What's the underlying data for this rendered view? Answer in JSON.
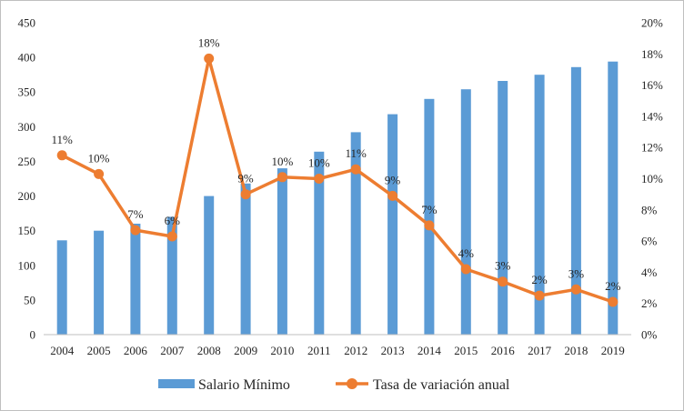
{
  "chart_data": {
    "type": "bar",
    "categories": [
      "2004",
      "2005",
      "2006",
      "2007",
      "2008",
      "2009",
      "2010",
      "2011",
      "2012",
      "2013",
      "2014",
      "2015",
      "2016",
      "2017",
      "2018",
      "2019"
    ],
    "series": [
      {
        "name": "Salario Mínimo",
        "type": "bar",
        "axis": "left",
        "color": "#5B9BD5",
        "values": [
          136,
          150,
          160,
          170,
          200,
          218,
          240,
          264,
          292,
          318,
          340,
          354,
          366,
          375,
          386,
          394
        ]
      },
      {
        "name": "Tasa de variación anual",
        "type": "line",
        "axis": "right",
        "color": "#ED7D31",
        "values": [
          11.5,
          10.3,
          6.7,
          6.3,
          17.7,
          9.0,
          10.1,
          10.0,
          10.6,
          8.9,
          7.0,
          4.2,
          3.4,
          2.5,
          2.9,
          2.1
        ],
        "data_labels": [
          "11%",
          "10%",
          "7%",
          "6%",
          "18%",
          "9%",
          "10%",
          "10%",
          "11%",
          "9%",
          "7%",
          "4%",
          "3%",
          "2%",
          "3%",
          "2%"
        ]
      }
    ],
    "y_left": {
      "ylim": [
        0,
        450
      ],
      "ticks": [
        0,
        50,
        100,
        150,
        200,
        250,
        300,
        350,
        400,
        450
      ],
      "tick_labels": [
        "0",
        "50",
        "100",
        "150",
        "200",
        "250",
        "300",
        "350",
        "400",
        "450"
      ]
    },
    "y_right": {
      "ylim": [
        0,
        20
      ],
      "ticks": [
        0,
        2,
        4,
        6,
        8,
        10,
        12,
        14,
        16,
        18,
        20
      ],
      "tick_labels": [
        "0%",
        "2%",
        "4%",
        "6%",
        "8%",
        "10%",
        "12%",
        "14%",
        "16%",
        "18%",
        "20%"
      ]
    },
    "title": "",
    "xlabel": "",
    "ylabel": "",
    "grid": false,
    "legend": "bottom"
  }
}
